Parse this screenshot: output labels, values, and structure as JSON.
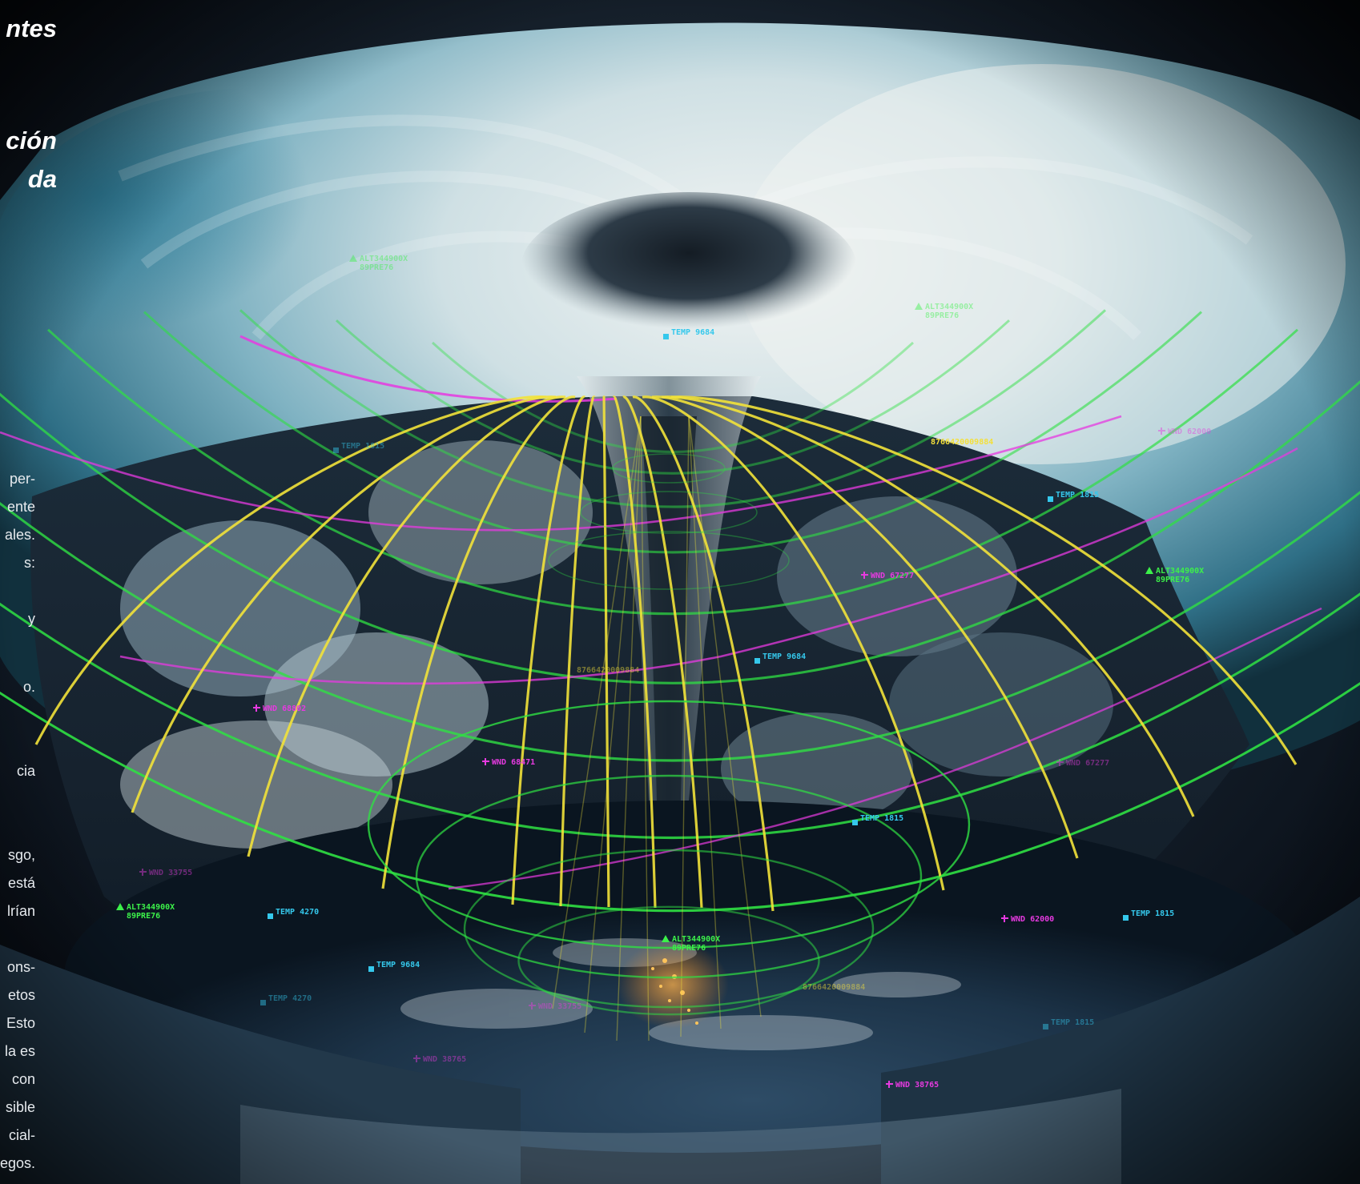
{
  "headings": [
    "ntes",
    "ción",
    "da"
  ],
  "body_fragments": [
    "per-",
    "ente",
    "ales.",
    "s:",
    "y",
    "o.",
    "cia",
    "sgo,",
    "está",
    "lrían",
    "ons-",
    "etos",
    "Esto",
    "la es",
    "con",
    "sible",
    "cial-",
    "egos."
  ],
  "hud_labels": {
    "temp_9684": "TEMP 9684",
    "temp_1815": "TEMP 1815",
    "temp_4270": "TEMP 4270",
    "wnd_67277": "WND 67277",
    "wnd_68802": "WND 68802",
    "wnd_68471": "WND 68471",
    "wnd_62000": "WND 62000",
    "wnd_33755": "WND 33755",
    "wnd_38765": "WND 38765",
    "alt_code": "ALT344900X",
    "alt_sub": "89PRE76",
    "code_long": "8766420009884"
  },
  "colors": {
    "meridian": "#f2e23a",
    "latitude_ring": "#2fe043",
    "magenta_arc": "#e63ae0",
    "temp_marker": "#35c8ec",
    "wnd_marker": "#e63ae0",
    "alt_marker": "#3cf14a"
  }
}
